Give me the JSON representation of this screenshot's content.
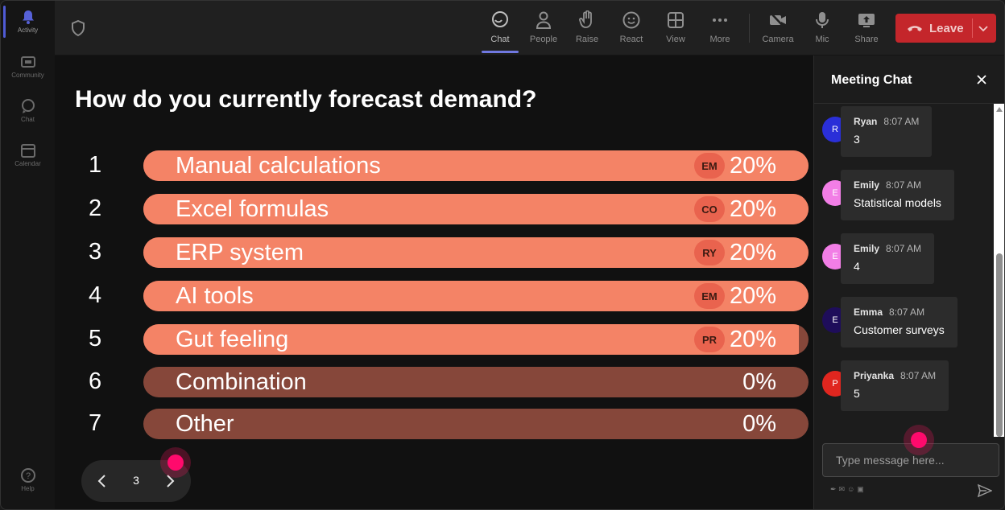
{
  "rail": {
    "items": [
      {
        "label": "Activity",
        "icon": "bell-icon"
      },
      {
        "label": "Community",
        "icon": "community-icon"
      },
      {
        "label": "Chat",
        "icon": "chat-icon"
      },
      {
        "label": "Calendar",
        "icon": "calendar-icon"
      }
    ],
    "help": {
      "label": "Help",
      "icon": "help-icon"
    }
  },
  "toolbar": {
    "buttons": [
      {
        "label": "Chat",
        "icon": "chat-icon",
        "active": true
      },
      {
        "label": "People",
        "icon": "people-icon"
      },
      {
        "label": "Raise",
        "icon": "raise-hand-icon"
      },
      {
        "label": "React",
        "icon": "smile-icon"
      },
      {
        "label": "View",
        "icon": "grid-icon"
      },
      {
        "label": "More",
        "icon": "more-icon"
      },
      {
        "label": "Camera",
        "icon": "camera-off-icon"
      },
      {
        "label": "Mic",
        "icon": "mic-icon"
      },
      {
        "label": "Share",
        "icon": "share-icon"
      }
    ],
    "leave_label": "Leave",
    "leave_color": "#c4262b"
  },
  "poll": {
    "question": "How do you currently forecast demand?",
    "options": [
      {
        "num": "1",
        "label": "Manual calculations",
        "initials": "EM",
        "percent": "20%",
        "fill": 1.0
      },
      {
        "num": "2",
        "label": "Excel formulas",
        "initials": "CO",
        "percent": "20%",
        "fill": 1.0
      },
      {
        "num": "3",
        "label": "ERP system",
        "initials": "RY",
        "percent": "20%",
        "fill": 1.0
      },
      {
        "num": "4",
        "label": "AI tools",
        "initials": "EM",
        "percent": "20%",
        "fill": 1.0
      },
      {
        "num": "5",
        "label": "Gut feeling",
        "initials": "PR",
        "percent": "20%",
        "fill": 0.985
      },
      {
        "num": "6",
        "label": "Combination",
        "initials": "",
        "percent": "0%",
        "fill": 0
      },
      {
        "num": "7",
        "label": "Other",
        "initials": "",
        "percent": "0%",
        "fill": 0
      }
    ],
    "bar_color": "#f48366",
    "bar_track_color": "#86473a",
    "page": "3"
  },
  "chat": {
    "title": "Meeting Chat",
    "messages": [
      {
        "initial": "R",
        "name": "Ryan",
        "time": "8:07 AM",
        "text": "3",
        "color": "#2a2fd8"
      },
      {
        "initial": "E",
        "name": "Emily",
        "time": "8:07 AM",
        "text": "Statistical models",
        "color": "#f27ee6"
      },
      {
        "initial": "E",
        "name": "Emily",
        "time": "8:07 AM",
        "text": "4",
        "color": "#f27ee6"
      },
      {
        "initial": "E",
        "name": "Emma",
        "time": "8:07 AM",
        "text": "Customer surveys",
        "color": "#1e0d5a"
      },
      {
        "initial": "P",
        "name": "Priyanka",
        "time": "8:07 AM",
        "text": "5",
        "color": "#e0261f"
      }
    ],
    "input_placeholder": "Type message here..."
  }
}
